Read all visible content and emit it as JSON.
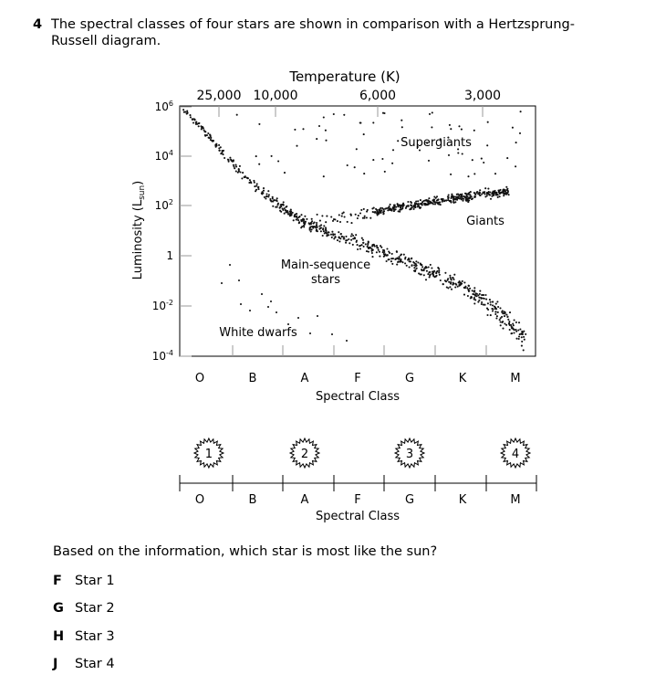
{
  "question": {
    "number": "4",
    "text": "The spectral classes of four stars are shown in comparison with a Hertzsprung-Russell diagram."
  },
  "hr_diagram": {
    "temperature_title": "Temperature (K)",
    "temperature_ticks": [
      "25,000",
      "10,000",
      "6,000",
      "3,000"
    ],
    "luminosity_label": "Luminosity (L",
    "luminosity_sub": "sun",
    "luminosity_close": ")",
    "luminosity_ticks": [
      {
        "base": "10",
        "exp": "6"
      },
      {
        "base": "10",
        "exp": "4"
      },
      {
        "base": "10",
        "exp": "2"
      },
      {
        "base": "1",
        "exp": ""
      },
      {
        "base": "10",
        "exp": "-2"
      },
      {
        "base": "10",
        "exp": "-4"
      }
    ],
    "region_labels": {
      "supergiants": "Supergiants",
      "giants": "Giants",
      "main_sequence_1": "Main-sequence",
      "main_sequence_2": "stars",
      "white_dwarfs": "White dwarfs"
    },
    "spectral_classes": [
      "O",
      "B",
      "A",
      "F",
      "G",
      "K",
      "M"
    ],
    "spectral_title": "Spectral Class"
  },
  "star_scale": {
    "stars": [
      {
        "label": "1",
        "class_position": 0.05
      },
      {
        "label": "2",
        "class_position": 2.0
      },
      {
        "label": "3",
        "class_position": 4.0
      },
      {
        "label": "4",
        "class_position": 6.0
      }
    ],
    "spectral_classes": [
      "O",
      "B",
      "A",
      "F",
      "G",
      "K",
      "M"
    ],
    "spectral_title": "Spectral Class"
  },
  "prompt": "Based on the information, which star is most like the sun?",
  "choices": [
    {
      "letter": "F",
      "text": "Star 1"
    },
    {
      "letter": "G",
      "text": "Star 2"
    },
    {
      "letter": "H",
      "text": "Star 3"
    },
    {
      "letter": "J",
      "text": "Star 4"
    }
  ]
}
